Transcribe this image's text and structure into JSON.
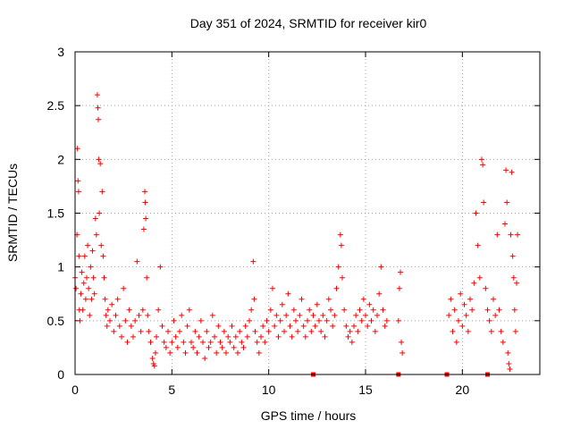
{
  "chart_data": {
    "type": "scatter",
    "title": "Day 351 of 2024, SRMTID for receiver kir0",
    "xlabel": "GPS time / hours",
    "ylabel": "SRMTID / TECUs",
    "xlim": [
      0,
      24
    ],
    "ylim": [
      0,
      3
    ],
    "xticks": [
      0,
      5,
      10,
      15,
      20
    ],
    "xtick_labels": [
      "0",
      "5",
      "10",
      "15",
      "20"
    ],
    "yticks": [
      0,
      0.5,
      1,
      1.5,
      2,
      2.5,
      3
    ],
    "ytick_labels": [
      "0",
      "0.5",
      "1",
      "1.5",
      "2",
      "2.5",
      "3"
    ],
    "grid": true,
    "marker": "plus",
    "color": "#ff0000",
    "series": [
      {
        "name": "SRMTID",
        "points": [
          [
            0.0,
            0.9
          ],
          [
            0.05,
            0.8
          ],
          [
            0.1,
            1.3
          ],
          [
            0.12,
            2.1
          ],
          [
            0.15,
            1.8
          ],
          [
            0.18,
            1.7
          ],
          [
            0.2,
            1.1
          ],
          [
            0.22,
            0.6
          ],
          [
            0.25,
            0.5
          ],
          [
            0.3,
            0.75
          ],
          [
            0.35,
            0.95
          ],
          [
            0.4,
            0.6
          ],
          [
            0.45,
            0.85
          ],
          [
            0.5,
            1.1
          ],
          [
            0.55,
            0.7
          ],
          [
            0.6,
            0.9
          ],
          [
            0.65,
            1.2
          ],
          [
            0.7,
            0.8
          ],
          [
            0.75,
            0.55
          ],
          [
            0.8,
            1.0
          ],
          [
            0.85,
            0.7
          ],
          [
            0.9,
            1.15
          ],
          [
            0.95,
            0.9
          ],
          [
            1.0,
            0.75
          ],
          [
            1.05,
            1.45
          ],
          [
            1.1,
            1.3
          ],
          [
            1.15,
            2.6
          ],
          [
            1.18,
            2.48
          ],
          [
            1.2,
            2.37
          ],
          [
            1.22,
            2.0
          ],
          [
            1.25,
            1.5
          ],
          [
            1.3,
            1.96
          ],
          [
            1.35,
            1.2
          ],
          [
            1.4,
            1.7
          ],
          [
            1.45,
            1.1
          ],
          [
            1.5,
            0.9
          ],
          [
            1.55,
            0.7
          ],
          [
            1.6,
            0.55
          ],
          [
            1.65,
            0.45
          ],
          [
            1.7,
            0.6
          ],
          [
            1.8,
            0.5
          ],
          [
            1.9,
            0.65
          ],
          [
            2.0,
            0.4
          ],
          [
            2.1,
            0.55
          ],
          [
            2.2,
            0.7
          ],
          [
            2.3,
            0.45
          ],
          [
            2.4,
            0.35
          ],
          [
            2.5,
            0.8
          ],
          [
            2.6,
            0.5
          ],
          [
            2.7,
            0.3
          ],
          [
            2.8,
            0.6
          ],
          [
            2.9,
            0.45
          ],
          [
            3.0,
            0.35
          ],
          [
            3.1,
            0.5
          ],
          [
            3.2,
            1.05
          ],
          [
            3.3,
            0.55
          ],
          [
            3.4,
            0.4
          ],
          [
            3.5,
            0.6
          ],
          [
            3.55,
            1.35
          ],
          [
            3.6,
            1.7
          ],
          [
            3.62,
            1.6
          ],
          [
            3.65,
            1.45
          ],
          [
            3.7,
            0.9
          ],
          [
            3.75,
            0.55
          ],
          [
            3.8,
            0.4
          ],
          [
            3.9,
            0.3
          ],
          [
            4.0,
            0.15
          ],
          [
            4.05,
            0.1
          ],
          [
            4.1,
            0.08
          ],
          [
            4.15,
            0.2
          ],
          [
            4.2,
            0.35
          ],
          [
            4.3,
            0.6
          ],
          [
            4.4,
            1.0
          ],
          [
            4.5,
            0.45
          ],
          [
            4.6,
            0.3
          ],
          [
            4.7,
            0.25
          ],
          [
            4.8,
            0.4
          ],
          [
            4.9,
            0.2
          ],
          [
            5.0,
            0.3
          ],
          [
            5.1,
            0.5
          ],
          [
            5.2,
            0.35
          ],
          [
            5.3,
            0.25
          ],
          [
            5.4,
            0.4
          ],
          [
            5.5,
            0.55
          ],
          [
            5.6,
            0.3
          ],
          [
            5.7,
            0.2
          ],
          [
            5.8,
            0.45
          ],
          [
            5.9,
            0.6
          ],
          [
            6.0,
            0.3
          ],
          [
            6.1,
            0.25
          ],
          [
            6.2,
            0.4
          ],
          [
            6.3,
            0.2
          ],
          [
            6.4,
            0.35
          ],
          [
            6.5,
            0.5
          ],
          [
            6.6,
            0.3
          ],
          [
            6.7,
            0.15
          ],
          [
            6.8,
            0.4
          ],
          [
            6.9,
            0.25
          ],
          [
            7.0,
            0.3
          ],
          [
            7.1,
            0.55
          ],
          [
            7.2,
            0.35
          ],
          [
            7.3,
            0.2
          ],
          [
            7.4,
            0.45
          ],
          [
            7.5,
            0.3
          ],
          [
            7.6,
            0.25
          ],
          [
            7.7,
            0.4
          ],
          [
            7.8,
            0.2
          ],
          [
            7.9,
            0.35
          ],
          [
            8.0,
            0.3
          ],
          [
            8.1,
            0.45
          ],
          [
            8.2,
            0.25
          ],
          [
            8.3,
            0.35
          ],
          [
            8.4,
            0.2
          ],
          [
            8.5,
            0.4
          ],
          [
            8.6,
            0.3
          ],
          [
            8.7,
            0.25
          ],
          [
            8.8,
            0.45
          ],
          [
            8.9,
            0.35
          ],
          [
            9.0,
            0.5
          ],
          [
            9.1,
            0.6
          ],
          [
            9.2,
            1.05
          ],
          [
            9.25,
            0.7
          ],
          [
            9.3,
            0.4
          ],
          [
            9.4,
            0.3
          ],
          [
            9.5,
            0.2
          ],
          [
            9.6,
            0.35
          ],
          [
            9.7,
            0.45
          ],
          [
            9.8,
            0.3
          ],
          [
            9.9,
            0.5
          ],
          [
            10.0,
            0.4
          ],
          [
            10.1,
            0.6
          ],
          [
            10.2,
            0.8
          ],
          [
            10.3,
            0.45
          ],
          [
            10.4,
            0.55
          ],
          [
            10.5,
            0.35
          ],
          [
            10.6,
            0.5
          ],
          [
            10.7,
            0.65
          ],
          [
            10.8,
            0.4
          ],
          [
            10.9,
            0.55
          ],
          [
            11.0,
            0.75
          ],
          [
            11.1,
            0.45
          ],
          [
            11.2,
            0.35
          ],
          [
            11.3,
            0.6
          ],
          [
            11.4,
            0.5
          ],
          [
            11.5,
            0.4
          ],
          [
            11.6,
            0.55
          ],
          [
            11.7,
            0.7
          ],
          [
            11.8,
            0.45
          ],
          [
            11.9,
            0.35
          ],
          [
            12.0,
            0.5
          ],
          [
            12.1,
            0.6
          ],
          [
            12.2,
            0.4
          ],
          [
            12.3,
            0.55
          ],
          [
            12.4,
            0.45
          ],
          [
            12.5,
            0.65
          ],
          [
            12.6,
            0.5
          ],
          [
            12.7,
            0.4
          ],
          [
            12.8,
            0.55
          ],
          [
            12.9,
            0.35
          ],
          [
            13.0,
            0.5
          ],
          [
            13.1,
            0.7
          ],
          [
            13.2,
            0.6
          ],
          [
            13.3,
            0.45
          ],
          [
            13.4,
            0.55
          ],
          [
            13.5,
            0.8
          ],
          [
            13.6,
            1.0
          ],
          [
            13.7,
            1.3
          ],
          [
            13.75,
            1.2
          ],
          [
            13.8,
            0.9
          ],
          [
            13.9,
            0.6
          ],
          [
            14.0,
            0.45
          ],
          [
            14.1,
            0.35
          ],
          [
            14.2,
            0.4
          ],
          [
            14.3,
            0.3
          ],
          [
            14.4,
            0.45
          ],
          [
            14.5,
            0.55
          ],
          [
            14.6,
            0.4
          ],
          [
            14.7,
            0.6
          ],
          [
            14.8,
            0.5
          ],
          [
            14.9,
            0.7
          ],
          [
            15.0,
            0.55
          ],
          [
            15.1,
            0.45
          ],
          [
            15.2,
            0.65
          ],
          [
            15.3,
            0.5
          ],
          [
            15.4,
            0.6
          ],
          [
            15.5,
            0.4
          ],
          [
            15.6,
            0.55
          ],
          [
            15.7,
            0.75
          ],
          [
            15.8,
            1.0
          ],
          [
            15.9,
            0.6
          ],
          [
            16.0,
            0.45
          ],
          [
            16.1,
            0.5
          ],
          [
            16.7,
            0.5
          ],
          [
            16.75,
            0.8
          ],
          [
            16.8,
            0.95
          ],
          [
            16.85,
            0.3
          ],
          [
            16.9,
            0.2
          ],
          [
            19.3,
            0.55
          ],
          [
            19.4,
            0.7
          ],
          [
            19.5,
            0.4
          ],
          [
            19.6,
            0.6
          ],
          [
            19.7,
            0.3
          ],
          [
            19.8,
            0.5
          ],
          [
            19.9,
            0.75
          ],
          [
            20.0,
            0.45
          ],
          [
            20.1,
            0.65
          ],
          [
            20.2,
            0.55
          ],
          [
            20.3,
            0.4
          ],
          [
            20.4,
            0.7
          ],
          [
            20.5,
            0.6
          ],
          [
            20.6,
            0.85
          ],
          [
            20.7,
            1.5
          ],
          [
            20.8,
            1.2
          ],
          [
            20.9,
            0.9
          ],
          [
            21.0,
            2.0
          ],
          [
            21.05,
            1.95
          ],
          [
            21.1,
            1.6
          ],
          [
            21.2,
            0.8
          ],
          [
            21.3,
            0.6
          ],
          [
            21.4,
            0.5
          ],
          [
            21.5,
            0.4
          ],
          [
            21.6,
            0.7
          ],
          [
            21.7,
            0.55
          ],
          [
            21.8,
            1.3
          ],
          [
            21.9,
            0.6
          ],
          [
            22.0,
            0.4
          ],
          [
            22.1,
            0.3
          ],
          [
            22.2,
            1.4
          ],
          [
            22.25,
            1.9
          ],
          [
            22.3,
            1.6
          ],
          [
            22.35,
            0.2
          ],
          [
            22.4,
            0.1
          ],
          [
            22.45,
            0.05
          ],
          [
            22.5,
            1.3
          ],
          [
            22.55,
            1.88
          ],
          [
            22.6,
            1.1
          ],
          [
            22.65,
            0.9
          ],
          [
            22.7,
            0.6
          ],
          [
            22.75,
            0.4
          ],
          [
            22.8,
            0.85
          ],
          [
            22.85,
            1.3
          ]
        ]
      }
    ],
    "zero_markers": [
      12.3,
      16.7,
      19.2,
      21.3
    ]
  }
}
